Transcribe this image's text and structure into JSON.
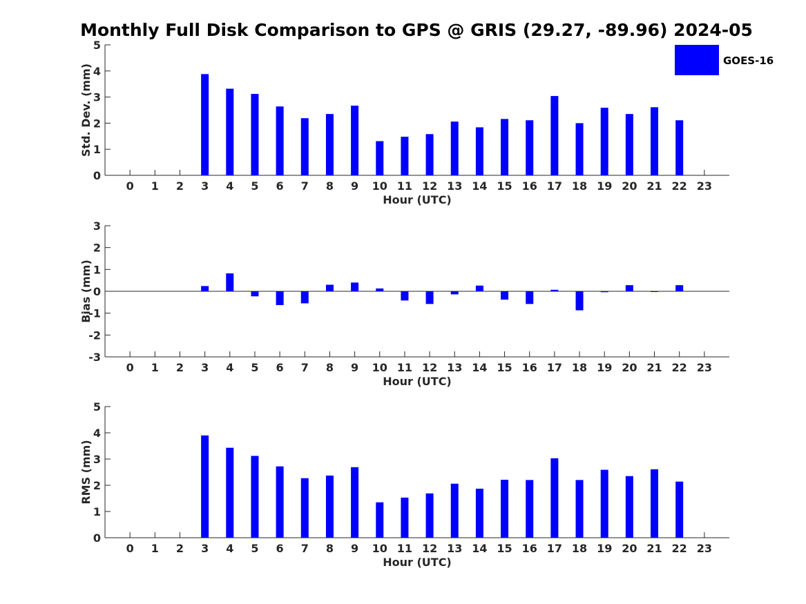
{
  "title": "Monthly Full Disk Comparison to GPS @ GRIS (29.27, -89.96) 2024-05",
  "legend": {
    "label": "GOES-16",
    "color": "#0000ff",
    "placement": "top-right"
  },
  "chart_data": [
    {
      "type": "bar",
      "categories": [
        "0",
        "1",
        "2",
        "3",
        "4",
        "5",
        "6",
        "7",
        "8",
        "9",
        "10",
        "11",
        "12",
        "13",
        "14",
        "15",
        "16",
        "17",
        "18",
        "19",
        "20",
        "21",
        "22",
        "23"
      ],
      "series": [
        {
          "name": "GOES-16",
          "values": [
            null,
            null,
            null,
            3.88,
            3.32,
            3.12,
            2.64,
            2.19,
            2.35,
            2.67,
            1.31,
            1.48,
            1.58,
            2.06,
            1.84,
            2.16,
            2.11,
            3.04,
            2.0,
            2.59,
            2.35,
            2.61,
            2.11,
            null
          ]
        }
      ],
      "xlabel": "Hour (UTC)",
      "ylabel": "Std. Dev. (mm)",
      "ylim": [
        0,
        5
      ],
      "yticks": [
        0,
        1,
        2,
        3,
        4,
        5
      ],
      "grid": false
    },
    {
      "type": "bar",
      "categories": [
        "0",
        "1",
        "2",
        "3",
        "4",
        "5",
        "6",
        "7",
        "8",
        "9",
        "10",
        "11",
        "12",
        "13",
        "14",
        "15",
        "16",
        "17",
        "18",
        "19",
        "20",
        "21",
        "22",
        "23"
      ],
      "series": [
        {
          "name": "GOES-16",
          "values": [
            null,
            null,
            null,
            0.24,
            0.82,
            -0.23,
            -0.63,
            -0.55,
            0.3,
            0.4,
            0.13,
            -0.42,
            -0.58,
            -0.14,
            0.26,
            -0.38,
            -0.58,
            0.07,
            -0.87,
            -0.04,
            0.28,
            0.0,
            0.28,
            null
          ]
        }
      ],
      "xlabel": "Hour (UTC)",
      "ylabel": "Bias (mm)",
      "ylim": [
        -3,
        3
      ],
      "yticks": [
        -3,
        -2,
        -1,
        0,
        1,
        2,
        3
      ],
      "grid": false
    },
    {
      "type": "bar",
      "categories": [
        "0",
        "1",
        "2",
        "3",
        "4",
        "5",
        "6",
        "7",
        "8",
        "9",
        "10",
        "11",
        "12",
        "13",
        "14",
        "15",
        "16",
        "17",
        "18",
        "19",
        "20",
        "21",
        "22",
        "23"
      ],
      "series": [
        {
          "name": "GOES-16",
          "values": [
            null,
            null,
            null,
            3.9,
            3.43,
            3.12,
            2.72,
            2.27,
            2.37,
            2.69,
            1.35,
            1.53,
            1.69,
            2.06,
            1.87,
            2.21,
            2.2,
            3.03,
            2.2,
            2.59,
            2.35,
            2.61,
            2.14,
            null
          ]
        }
      ],
      "xlabel": "Hour (UTC)",
      "ylabel": "RMS (mm)",
      "ylim": [
        0,
        5
      ],
      "yticks": [
        0,
        1,
        2,
        3,
        4,
        5
      ],
      "grid": false
    }
  ]
}
